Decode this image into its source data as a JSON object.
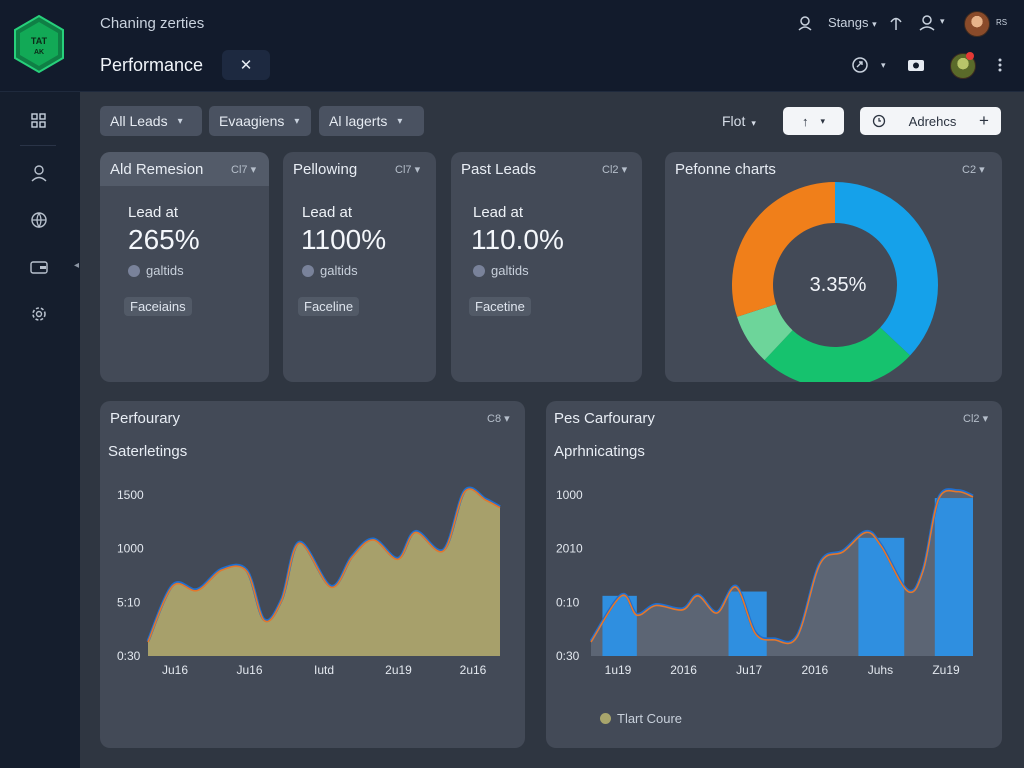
{
  "header": {
    "logo_text_top": "TAT",
    "logo_text_bottom": "AK",
    "app_title": "Chaning zerties",
    "page_title": "Performance",
    "close_symbol": "✕",
    "settings_label": "Stangs",
    "icons": [
      "user-outline-icon",
      "antenna-icon",
      "profile-icon",
      "share-icon",
      "camera-icon",
      "more-vertical-icon"
    ],
    "notification_mark": "R",
    "avatar_initial": "R"
  },
  "sidebar": {
    "icons": [
      "grid-icon",
      "user-icon",
      "globe-icon",
      "wallet-icon",
      "settings-gear-icon"
    ]
  },
  "filters": {
    "lead_filter": "All Leads",
    "campaign_filter": "Evaagiens",
    "target_filter": "Al  lagerts",
    "flot_label": "Flot",
    "sort_symbol": "↑",
    "advance_label": "Adrehcs",
    "add_symbol": "+"
  },
  "metric_cards": [
    {
      "title": "Ald Remesion",
      "menu": "Cl7",
      "label": "Lead at",
      "value": "265%",
      "legend": "galtids",
      "tag": "Faceiains"
    },
    {
      "title": "Pellowing",
      "menu": "Cl7",
      "label": "Lead at",
      "value": "1100%",
      "legend": "galtids",
      "tag": "Faceline"
    },
    {
      "title": "Past Leads",
      "menu": "Cl2",
      "label": "Lead at",
      "value": "110.0%",
      "legend": "galtids",
      "tag": "Facetine"
    }
  ],
  "donut_card": {
    "title": "Pefonne charts",
    "menu": "C2",
    "center_value": "3.35%"
  },
  "chart_data": [
    {
      "type": "pie",
      "title": "Pefonne charts",
      "center_label": "3.35%",
      "slices": [
        {
          "value": 37,
          "color": "#15a1ea"
        },
        {
          "value": 25,
          "color": "#16c26e"
        },
        {
          "value": 8,
          "color": "#6dd59a"
        },
        {
          "value": 30,
          "color": "#f07f1a"
        }
      ]
    },
    {
      "type": "area",
      "title": "Perfourary",
      "subtitle": "Saterletings",
      "menu": "C8",
      "ylim": [
        0,
        1750
      ],
      "y_ticks": [
        "0:30",
        "5:10",
        "1000",
        "1500"
      ],
      "y_tick_values": [
        0,
        500,
        1000,
        1500
      ],
      "x_ticks": [
        "Ju16",
        "Ju16",
        "Iutd",
        "2u19",
        "2u16"
      ],
      "x_range": [
        0,
        100
      ],
      "x": [
        0,
        7,
        14,
        21,
        28,
        33,
        38,
        43,
        52,
        58,
        64,
        71,
        76,
        84,
        90,
        96,
        100
      ],
      "y": [
        130,
        650,
        610,
        800,
        790,
        330,
        520,
        1050,
        640,
        920,
        1080,
        900,
        1150,
        980,
        1530,
        1450,
        1380
      ]
    },
    {
      "type": "area",
      "title": "Pes Carfourary",
      "subtitle": "Aprhnicatings",
      "menu": "Cl2",
      "ylim": [
        0,
        1750
      ],
      "y_ticks": [
        "0:30",
        "0:10",
        "2010",
        "1000"
      ],
      "y_tick_values": [
        0,
        500,
        1000,
        1500
      ],
      "x_ticks": [
        "1u19",
        "2016",
        "Ju17",
        "2016",
        "Juhs",
        "Zu19"
      ],
      "x_range": [
        0,
        100
      ],
      "x": [
        0,
        8,
        12,
        17,
        24,
        28,
        33,
        38,
        43,
        48,
        54,
        60,
        66,
        72,
        76,
        83,
        87,
        91,
        96,
        100
      ],
      "y": [
        130,
        560,
        380,
        470,
        430,
        560,
        400,
        640,
        210,
        150,
        180,
        860,
        970,
        1150,
        1020,
        600,
        800,
        1460,
        1530,
        1480
      ],
      "bars": [
        {
          "x_start": 3,
          "x_end": 12,
          "value": 560
        },
        {
          "x_start": 36,
          "x_end": 46,
          "value": 600
        },
        {
          "x_start": 70,
          "x_end": 82,
          "value": 1100
        },
        {
          "x_start": 90,
          "x_end": 100,
          "value": 1470
        }
      ],
      "legend": "Tlart Coure"
    }
  ],
  "colors": {
    "accent_blue": "#15a1ea",
    "accent_green": "#16c26e",
    "accent_orange": "#f07f1a",
    "olive_fill": "#a7a06b",
    "grey_fill": "#5c6574",
    "bar_blue": "#2f8fe0"
  }
}
